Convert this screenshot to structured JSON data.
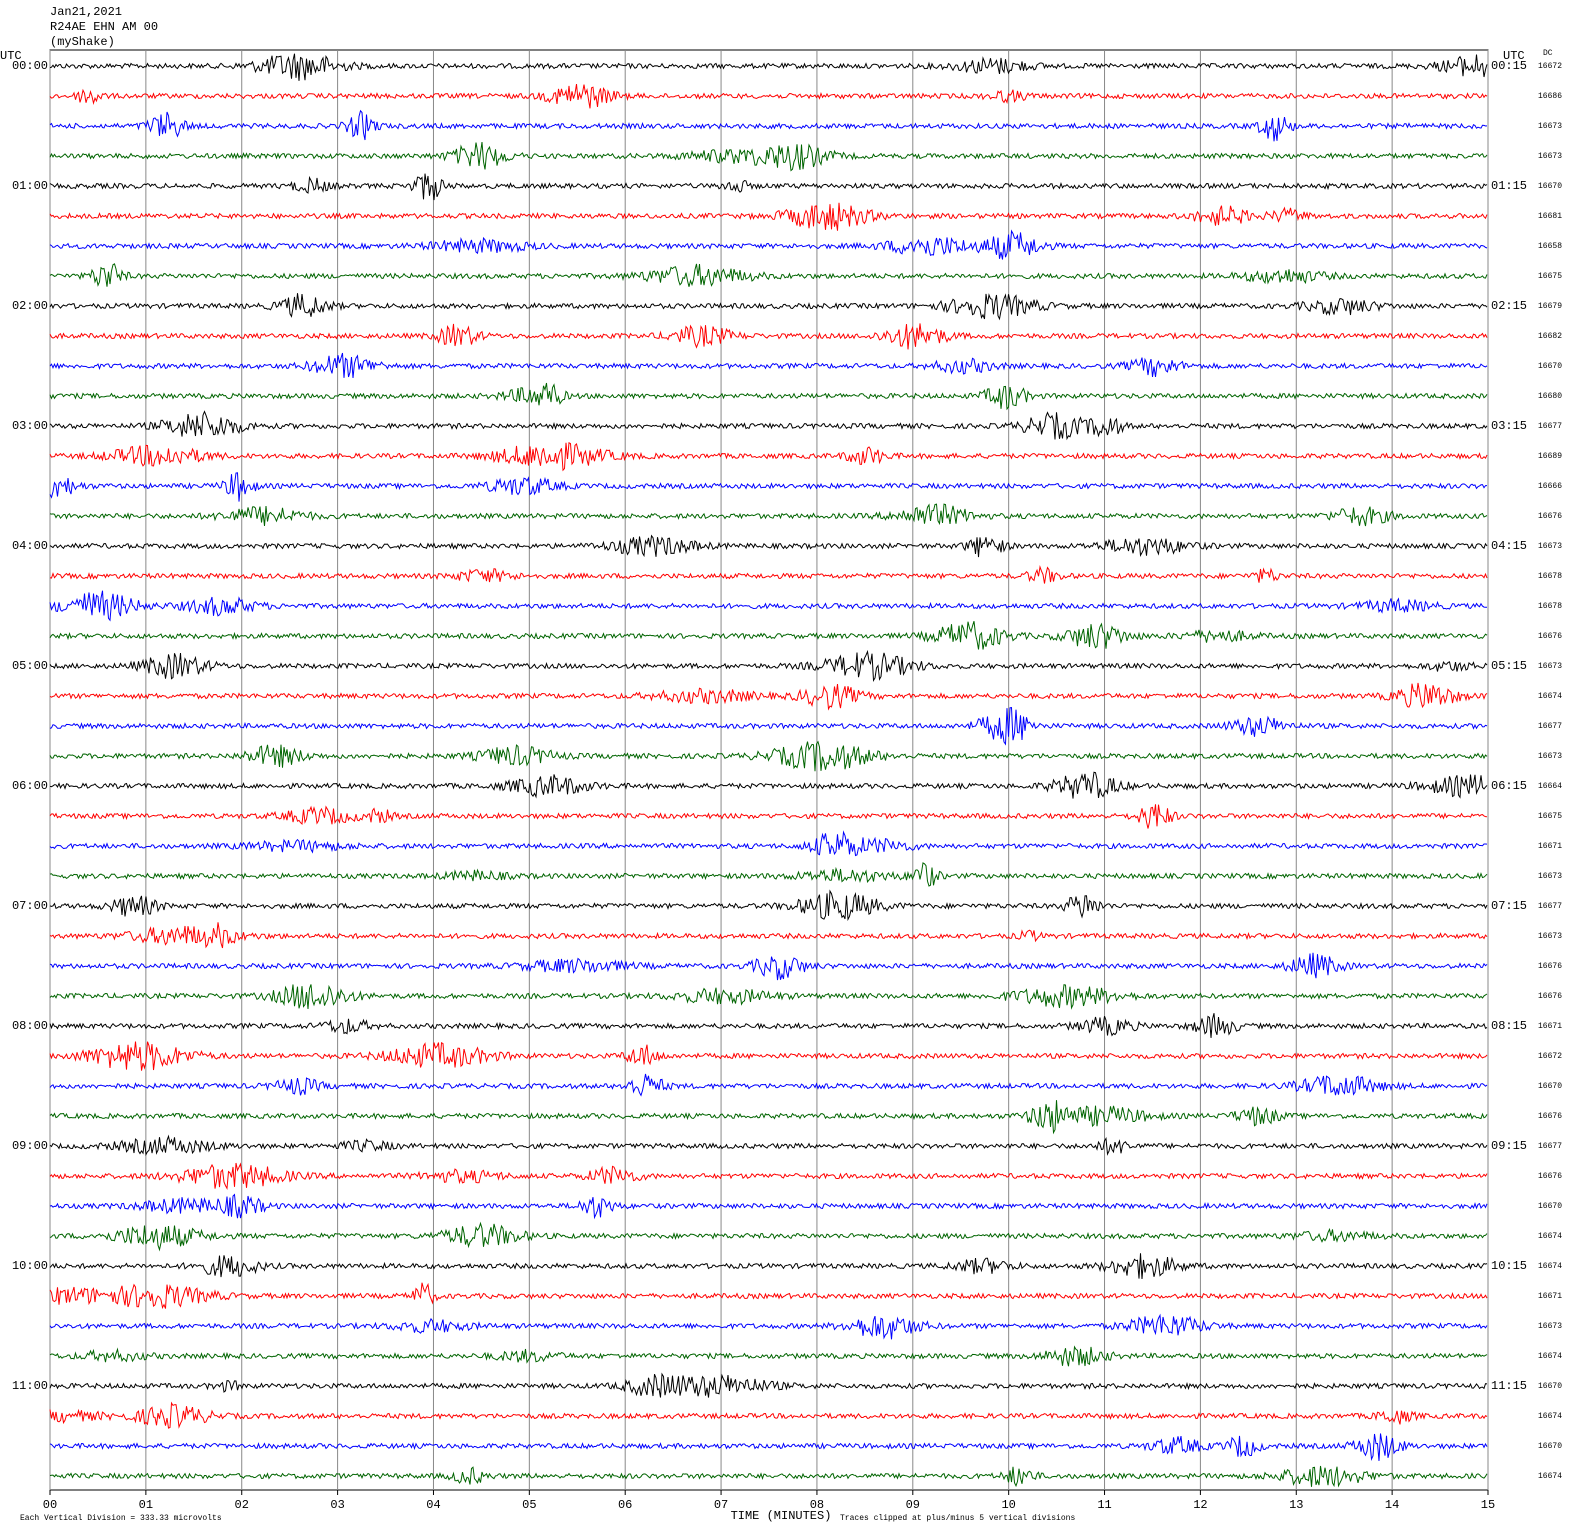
{
  "chart_data": {
    "type": "helicorder",
    "title_lines": [
      "Jan21,2021",
      "R24AE EHN AM 00",
      "(myShake)"
    ],
    "left_axis_title": "UTC",
    "right_axis_title": "UTC",
    "dc_title": "DC",
    "xlabel": "TIME (MINUTES)",
    "footer_left": "Each Vertical Division =  333.33 microvolts",
    "footer_right": "Traces clipped at plus/minus 5 vertical divisions",
    "xlim": [
      0,
      15
    ],
    "xticks": [
      {
        "value": 0,
        "label": "00"
      },
      {
        "value": 1,
        "label": "01"
      },
      {
        "value": 2,
        "label": "02"
      },
      {
        "value": 3,
        "label": "03"
      },
      {
        "value": 4,
        "label": "04"
      },
      {
        "value": 5,
        "label": "05"
      },
      {
        "value": 6,
        "label": "06"
      },
      {
        "value": 7,
        "label": "07"
      },
      {
        "value": 8,
        "label": "08"
      },
      {
        "value": 9,
        "label": "09"
      },
      {
        "value": 10,
        "label": "10"
      },
      {
        "value": 11,
        "label": "11"
      },
      {
        "value": 12,
        "label": "12"
      },
      {
        "value": 13,
        "label": "13"
      },
      {
        "value": 14,
        "label": "14"
      },
      {
        "value": 15,
        "label": "15"
      }
    ],
    "grid": true,
    "colors": [
      "#000000",
      "#ff0000",
      "#0000ff",
      "#006400"
    ],
    "row_labels_left": [
      "00:00",
      null,
      null,
      null,
      "01:00",
      null,
      null,
      null,
      "02:00",
      null,
      null,
      null,
      "03:00",
      null,
      null,
      null,
      "04:00",
      null,
      null,
      null,
      "05:00",
      null,
      null,
      null,
      "06:00",
      null,
      null,
      null,
      "07:00",
      null,
      null,
      null,
      "08:00",
      null,
      null,
      null,
      "09:00",
      null,
      null,
      null,
      "10:00",
      null,
      null,
      null,
      "11:00",
      null,
      null,
      null
    ],
    "row_labels_right": [
      "00:15",
      null,
      null,
      null,
      "01:15",
      null,
      null,
      null,
      "02:15",
      null,
      null,
      null,
      "03:15",
      null,
      null,
      null,
      "04:15",
      null,
      null,
      null,
      "05:15",
      null,
      null,
      null,
      "06:15",
      null,
      null,
      null,
      "07:15",
      null,
      null,
      null,
      "08:15",
      null,
      null,
      null,
      "09:15",
      null,
      null,
      null,
      "10:15",
      null,
      null,
      null,
      "11:15",
      null,
      null,
      null
    ],
    "dc": [
      16672,
      16686,
      16673,
      16673,
      16670,
      16681,
      16658,
      16675,
      16679,
      16682,
      16670,
      16680,
      16677,
      16689,
      16666,
      16676,
      16673,
      16678,
      16678,
      16676,
      16673,
      16674,
      16677,
      16673,
      16664,
      16675,
      16671,
      16673,
      16677,
      16673,
      16676,
      16676,
      16671,
      16672,
      16670,
      16676,
      16677,
      16676,
      16670,
      16674,
      16674,
      16671,
      16673,
      16674,
      16670,
      16674,
      16670,
      16674
    ]
  }
}
